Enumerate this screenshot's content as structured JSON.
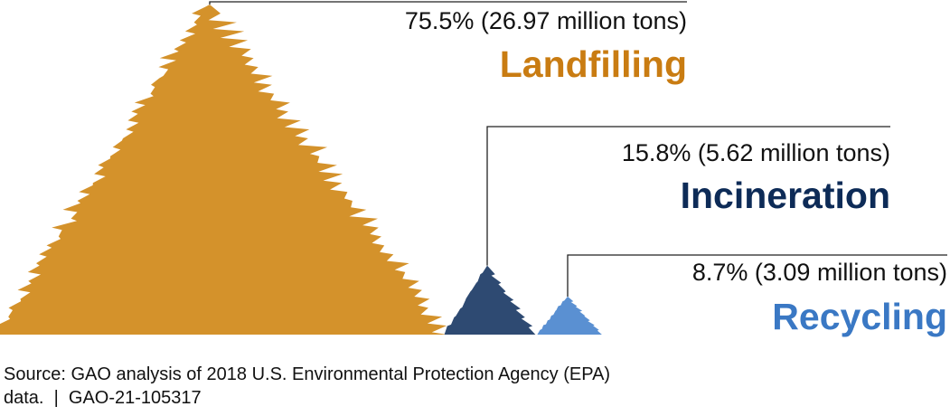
{
  "chart_data": {
    "type": "pile",
    "categories": [
      "Landfilling",
      "Incineration",
      "Recycling"
    ],
    "values": [
      75.5,
      15.8,
      8.7
    ],
    "value_labels": [
      "75.5% (26.97 million tons)",
      "15.8% (5.62 million tons)",
      "8.7% (3.09 million tons)"
    ],
    "colors": [
      "#d4922b",
      "#2e4a72",
      "#5a90d2"
    ],
    "label_colors": [
      "#c97c12",
      "#0d2b57",
      "#3a78c4"
    ],
    "source": [
      "Source: GAO analysis of 2018 U.S. Environmental Protection Agency (EPA)",
      "data.  |  GAO-21-105317"
    ]
  }
}
